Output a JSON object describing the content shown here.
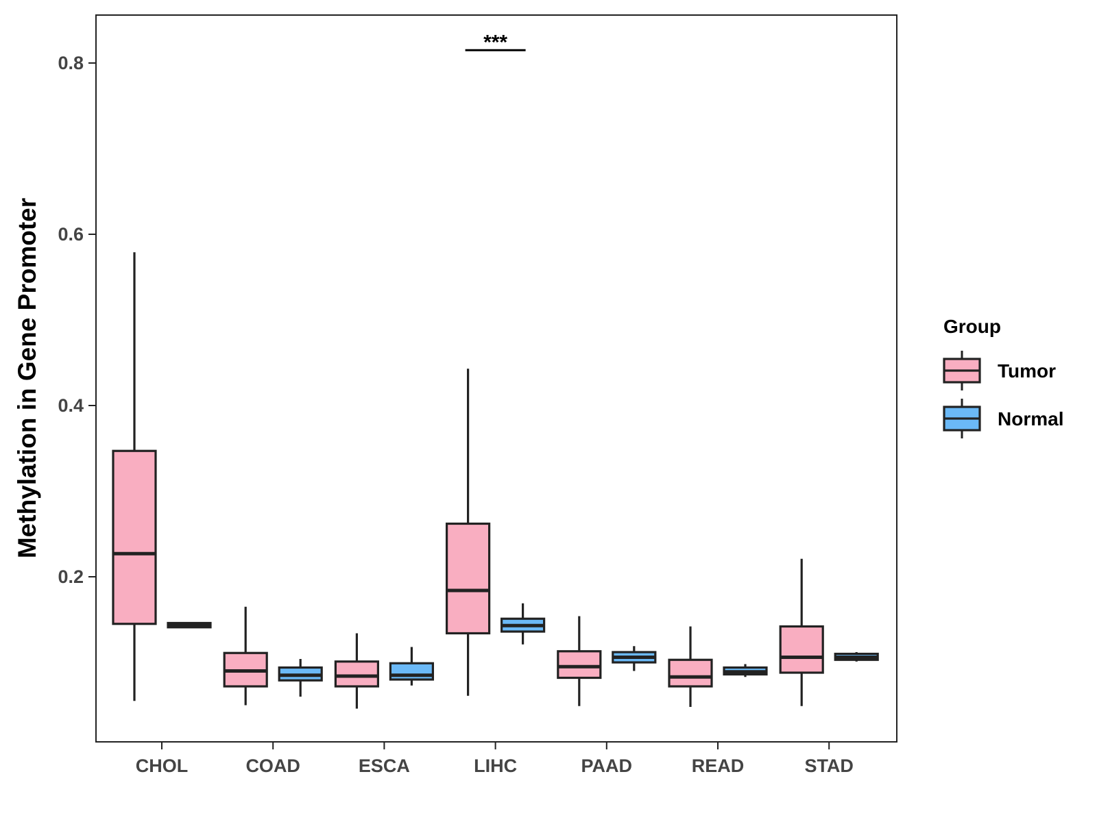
{
  "chart_data": {
    "type": "boxplot",
    "title": "",
    "xlabel": "",
    "ylabel": "Methylation in Gene Promoter",
    "ylim": [
      0.02,
      0.85
    ],
    "yticks": [
      0.2,
      0.4,
      0.6,
      0.8
    ],
    "ytick_labels": [
      "0.2",
      "0.4",
      "0.6",
      "0.8"
    ],
    "grid": false,
    "categories": [
      "CHOL",
      "COAD",
      "ESCA",
      "LIHC",
      "PAAD",
      "READ",
      "STAD"
    ],
    "legend": {
      "title": "Group",
      "position": "right",
      "entries": [
        {
          "name": "Tumor",
          "color": "#f9aec1"
        },
        {
          "name": "Normal",
          "color": "#6bb9f7"
        }
      ]
    },
    "series": [
      {
        "name": "Tumor",
        "color": "#f9aec1",
        "boxes": [
          {
            "category": "CHOL",
            "min": 0.055,
            "q1": 0.145,
            "median": 0.227,
            "q3": 0.347,
            "max": 0.579
          },
          {
            "category": "COAD",
            "min": 0.05,
            "q1": 0.072,
            "median": 0.09,
            "q3": 0.111,
            "max": 0.165
          },
          {
            "category": "ESCA",
            "min": 0.046,
            "q1": 0.072,
            "median": 0.084,
            "q3": 0.101,
            "max": 0.134
          },
          {
            "category": "LIHC",
            "min": 0.061,
            "q1": 0.134,
            "median": 0.184,
            "q3": 0.262,
            "max": 0.443
          },
          {
            "category": "PAAD",
            "min": 0.049,
            "q1": 0.082,
            "median": 0.095,
            "q3": 0.113,
            "max": 0.154
          },
          {
            "category": "READ",
            "min": 0.048,
            "q1": 0.072,
            "median": 0.083,
            "q3": 0.103,
            "max": 0.142
          },
          {
            "category": "STAD",
            "min": 0.049,
            "q1": 0.088,
            "median": 0.106,
            "q3": 0.142,
            "max": 0.221
          }
        ]
      },
      {
        "name": "Normal",
        "color": "#6bb9f7",
        "boxes": [
          {
            "category": "CHOL",
            "min": 0.14,
            "q1": 0.141,
            "median": 0.143,
            "q3": 0.146,
            "max": 0.147
          },
          {
            "category": "COAD",
            "min": 0.06,
            "q1": 0.079,
            "median": 0.085,
            "q3": 0.094,
            "max": 0.104
          },
          {
            "category": "ESCA",
            "min": 0.073,
            "q1": 0.08,
            "median": 0.085,
            "q3": 0.099,
            "max": 0.118
          },
          {
            "category": "LIHC",
            "min": 0.121,
            "q1": 0.136,
            "median": 0.143,
            "q3": 0.151,
            "max": 0.169
          },
          {
            "category": "PAAD",
            "min": 0.09,
            "q1": 0.1,
            "median": 0.106,
            "q3": 0.112,
            "max": 0.119
          },
          {
            "category": "READ",
            "min": 0.083,
            "q1": 0.086,
            "median": 0.089,
            "q3": 0.094,
            "max": 0.098
          },
          {
            "category": "STAD",
            "min": 0.101,
            "q1": 0.103,
            "median": 0.106,
            "q3": 0.11,
            "max": 0.112
          }
        ]
      }
    ],
    "annotations": [
      {
        "text": "***",
        "category": "LIHC",
        "y": 0.815
      }
    ]
  }
}
